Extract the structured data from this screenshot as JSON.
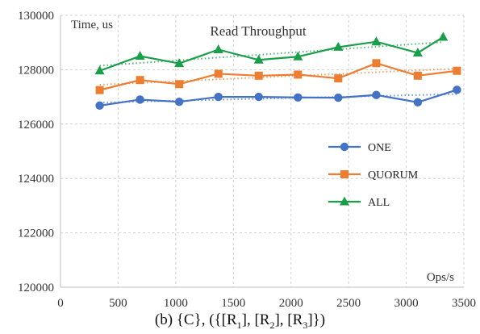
{
  "chart_data": {
    "type": "line",
    "title": "Read Throughput",
    "xlabel": "Ops/s",
    "ylabel": "Time, us",
    "xlim": [
      0,
      3500
    ],
    "ylim": [
      120000,
      130000
    ],
    "xticks": [
      0,
      500,
      1000,
      1500,
      2000,
      2500,
      3000,
      3500
    ],
    "yticks": [
      120000,
      122000,
      124000,
      126000,
      128000,
      130000
    ],
    "grid": true,
    "legend_position": "right",
    "trendlines": true,
    "series": [
      {
        "name": "ONE",
        "color": "#4472C4",
        "marker": "circle",
        "x": [
          340,
          690,
          1030,
          1370,
          1720,
          2060,
          2410,
          2740,
          3100,
          3440
        ],
        "y": [
          126680,
          126900,
          126820,
          127000,
          127000,
          126980,
          126970,
          127070,
          126800,
          127260
        ]
      },
      {
        "name": "QUORUM",
        "color": "#ED7D31",
        "marker": "square",
        "x": [
          340,
          690,
          1030,
          1370,
          1720,
          2060,
          2410,
          2740,
          3100,
          3440
        ],
        "y": [
          127250,
          127620,
          127470,
          127850,
          127780,
          127820,
          127680,
          128240,
          127780,
          127960
        ]
      },
      {
        "name": "ALL",
        "color": "#1A9E49",
        "marker": "triangle",
        "x": [
          340,
          690,
          1030,
          1370,
          1720,
          2060,
          2410,
          2740,
          3100,
          3320
        ],
        "y": [
          127960,
          128500,
          128230,
          128740,
          128360,
          128480,
          128830,
          129030,
          128620,
          129200
        ]
      }
    ]
  },
  "caption": {
    "prefix": "(b) {C}, ({[R",
    "s1": "1",
    "mid1": "], [R",
    "s2": "2",
    "mid2": "], [R",
    "s3": "3",
    "suffix": "]})"
  }
}
